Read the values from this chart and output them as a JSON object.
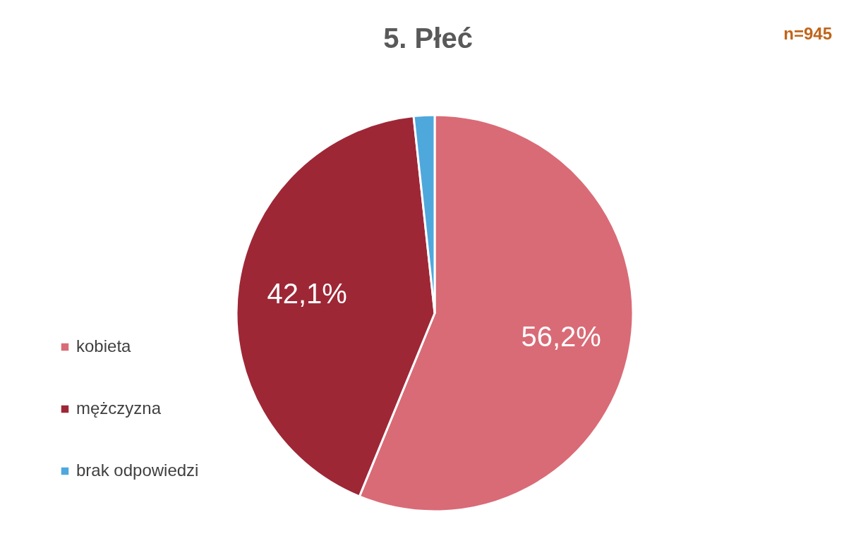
{
  "chart_data": {
    "type": "pie",
    "title": "5. Płeć",
    "annotations": [
      "n=945"
    ],
    "categories": [
      "kobieta",
      "mężczyzna",
      "brak odpowiedzi"
    ],
    "values": [
      56.2,
      42.1,
      1.7
    ],
    "colors": [
      "#d96b76",
      "#9e2736",
      "#4fa8dc"
    ],
    "value_labels": [
      "56,2%",
      "42,1%",
      null
    ],
    "legend": "left"
  }
}
